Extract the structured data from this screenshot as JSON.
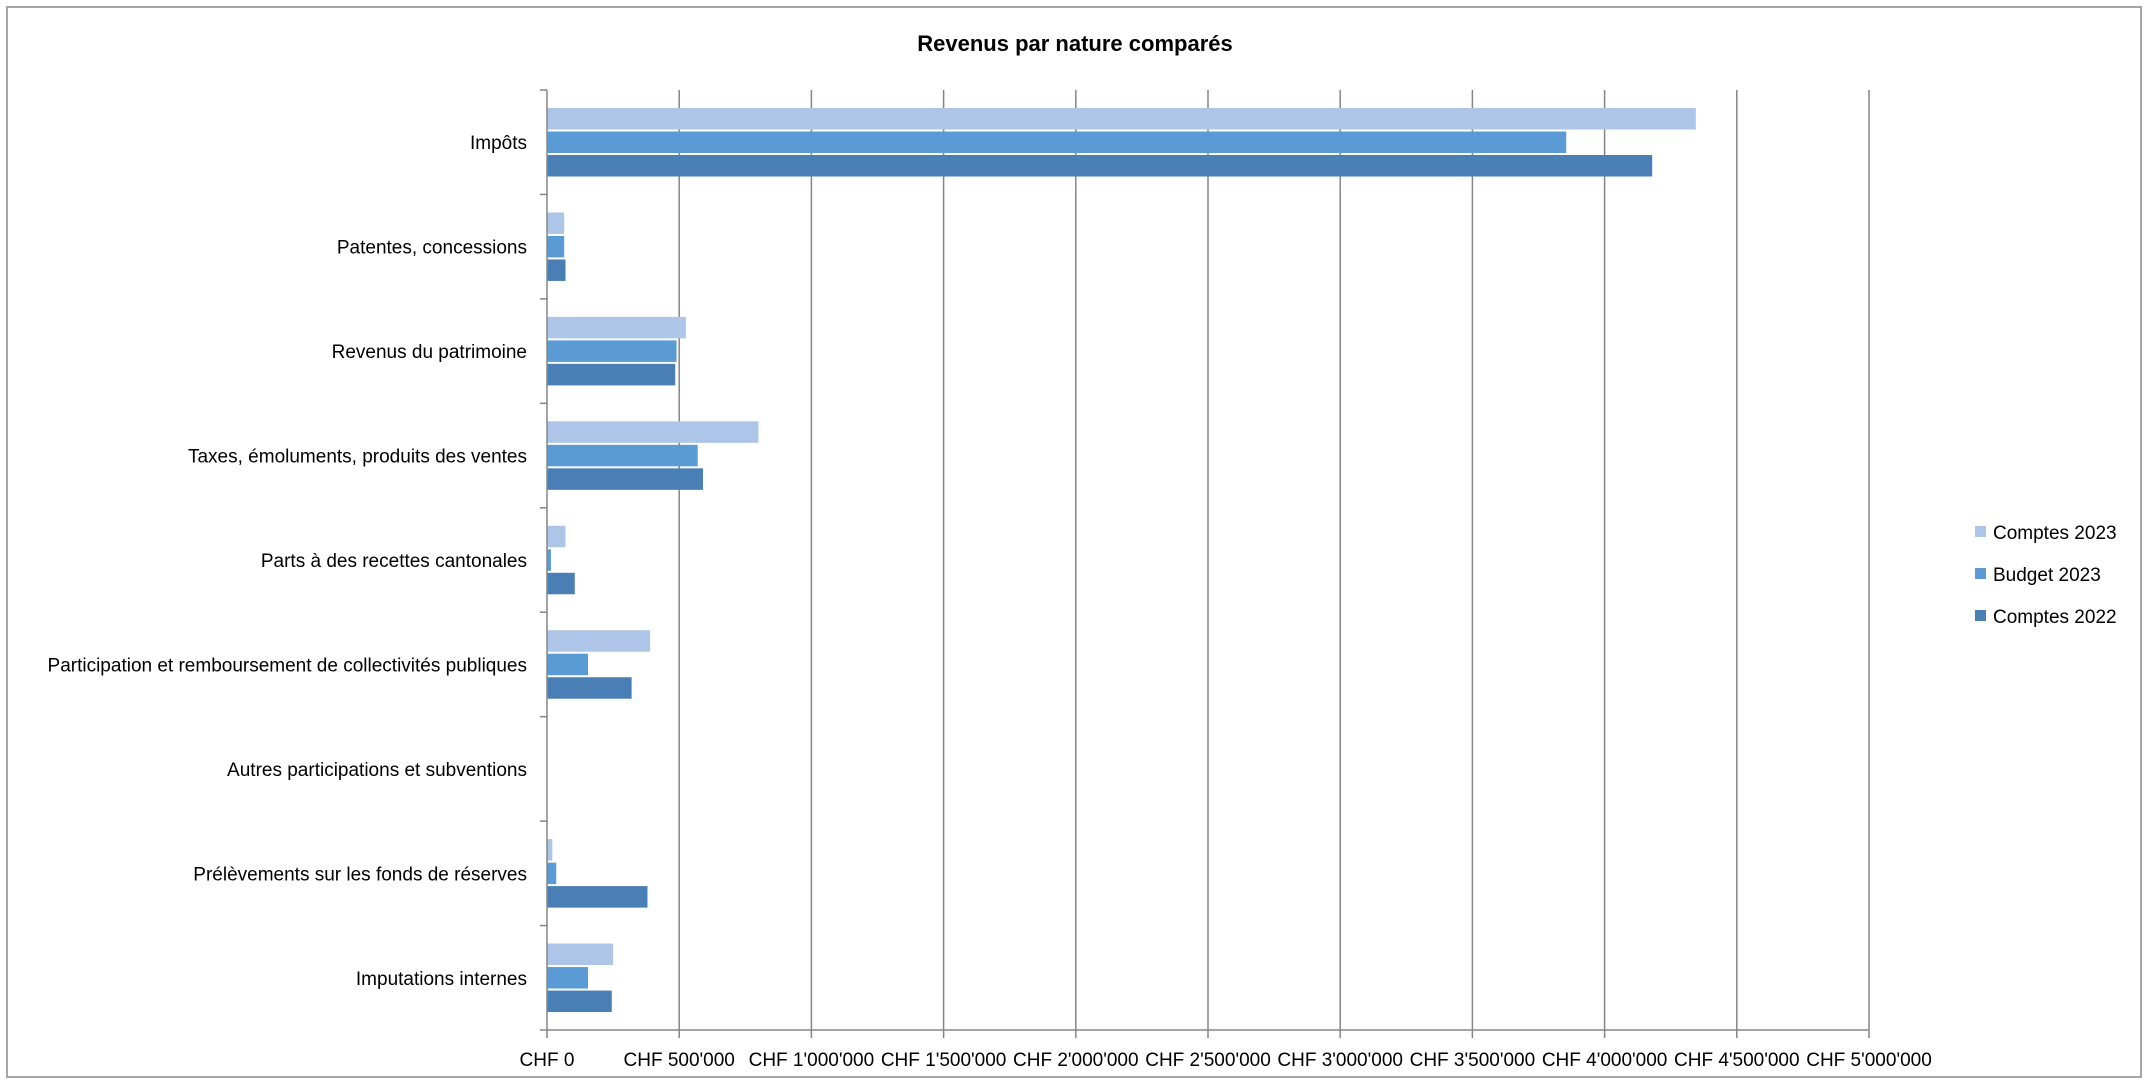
{
  "chart_data": {
    "type": "bar",
    "orientation": "horizontal",
    "title": "Revenus par nature comparés",
    "categories": [
      "Impôts",
      "Patentes, concessions",
      "Revenus du patrimoine",
      "Taxes, émoluments, produits des ventes",
      "Parts à des recettes cantonales",
      "Participation et remboursement de collectivités publiques",
      "Autres participations et subventions",
      "Prélèvements sur les fonds de réserves",
      "Imputations internes"
    ],
    "series": [
      {
        "name": "Comptes 2023",
        "color": "#adc5e7",
        "values": [
          4345000,
          65000,
          525000,
          800000,
          70000,
          390000,
          0,
          20000,
          250000
        ]
      },
      {
        "name": "Budget 2023",
        "color": "#5b9bd5",
        "values": [
          3855000,
          65000,
          490000,
          570000,
          15000,
          155000,
          0,
          35000,
          155000
        ]
      },
      {
        "name": "Comptes 2022",
        "color": "#4a7fb5",
        "values": [
          4180000,
          70000,
          485000,
          590000,
          105000,
          320000,
          0,
          380000,
          245000
        ]
      }
    ],
    "xlim": [
      0,
      5000000
    ],
    "x_ticks": [
      {
        "value": 0,
        "label": "CHF 0"
      },
      {
        "value": 500000,
        "label": "CHF 500'000"
      },
      {
        "value": 1000000,
        "label": "CHF 1'000'000"
      },
      {
        "value": 1500000,
        "label": "CHF 1'500'000"
      },
      {
        "value": 2000000,
        "label": "CHF 2'000'000"
      },
      {
        "value": 2500000,
        "label": "CHF 2'500'000"
      },
      {
        "value": 3000000,
        "label": "CHF 3'000'000"
      },
      {
        "value": 3500000,
        "label": "CHF 3'500'000"
      },
      {
        "value": 4000000,
        "label": "CHF 4'000'000"
      },
      {
        "value": 4500000,
        "label": "CHF 4'500'000"
      },
      {
        "value": 5000000,
        "label": "CHF 5'000'000"
      }
    ],
    "grid": true,
    "legend_position": "right"
  }
}
